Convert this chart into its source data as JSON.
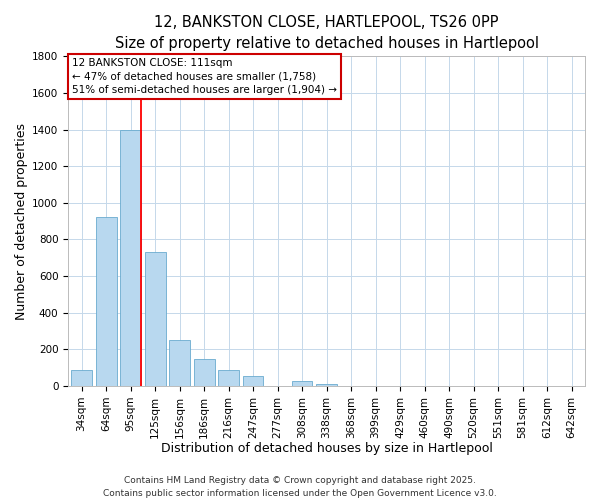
{
  "title_line1": "12, BANKSTON CLOSE, HARTLEPOOL, TS26 0PP",
  "title_line2": "Size of property relative to detached houses in Hartlepool",
  "xlabel": "Distribution of detached houses by size in Hartlepool",
  "ylabel": "Number of detached properties",
  "bar_labels": [
    "34sqm",
    "64sqm",
    "95sqm",
    "125sqm",
    "156sqm",
    "186sqm",
    "216sqm",
    "247sqm",
    "277sqm",
    "308sqm",
    "338sqm",
    "368sqm",
    "399sqm",
    "429sqm",
    "460sqm",
    "490sqm",
    "520sqm",
    "551sqm",
    "581sqm",
    "612sqm",
    "642sqm"
  ],
  "bar_values": [
    90,
    920,
    1400,
    730,
    250,
    145,
    90,
    55,
    0,
    25,
    10,
    0,
    0,
    0,
    0,
    0,
    0,
    0,
    0,
    0,
    0
  ],
  "bar_color": "#b8d8ef",
  "bar_edge_color": "#6aabcf",
  "ylim": [
    0,
    1800
  ],
  "yticks": [
    0,
    200,
    400,
    600,
    800,
    1000,
    1200,
    1400,
    1600,
    1800
  ],
  "red_line_index": 2,
  "annotation_line1": "12 BANKSTON CLOSE: 111sqm",
  "annotation_line2": "← 47% of detached houses are smaller (1,758)",
  "annotation_line3": "51% of semi-detached houses are larger (1,904) →",
  "annotation_box_color": "#ffffff",
  "annotation_box_edge_color": "#cc0000",
  "footer_line1": "Contains HM Land Registry data © Crown copyright and database right 2025.",
  "footer_line2": "Contains public sector information licensed under the Open Government Licence v3.0.",
  "bg_color": "#ffffff",
  "grid_color": "#c5d8ea",
  "title_fontsize": 10.5,
  "subtitle_fontsize": 9.5,
  "axis_label_fontsize": 9,
  "tick_fontsize": 7.5,
  "annotation_fontsize": 7.5,
  "footer_fontsize": 6.5
}
